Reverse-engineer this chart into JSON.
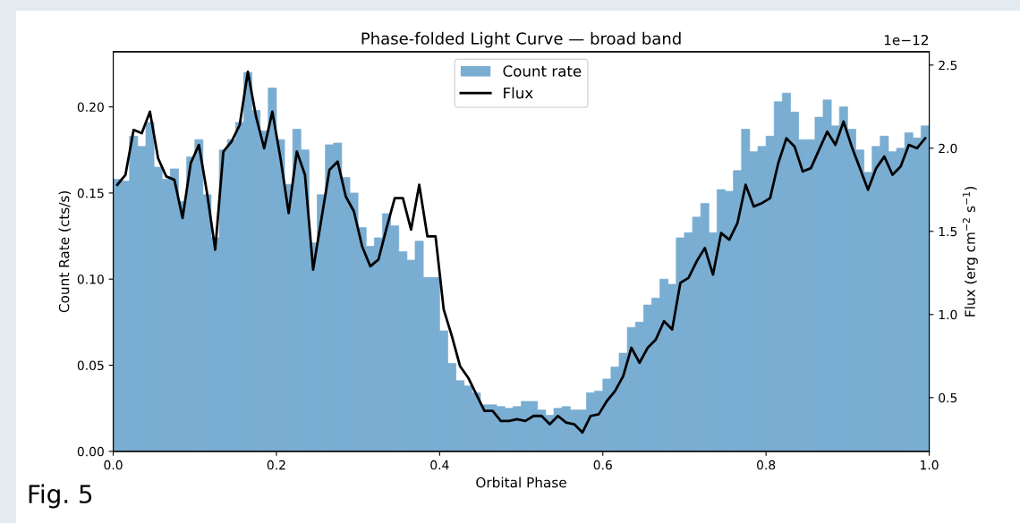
{
  "chart_data": {
    "type": "histogram",
    "title": "Phase-folded Light Curve — broad band",
    "xlabel": "Orbital Phase",
    "ylabel": "Count Rate (cts/s)",
    "y2label": "Flux (erg cm$^{−2}$ s$^{−1}$)",
    "bins": [
      0.0,
      0.01,
      0.02,
      0.03,
      0.04,
      0.05,
      0.06,
      0.07,
      0.08,
      0.09,
      0.1,
      0.11,
      0.12,
      0.13,
      0.14,
      0.15,
      0.16,
      0.17,
      0.18,
      0.19,
      0.2,
      0.21,
      0.22,
      0.23,
      0.24,
      0.25,
      0.26,
      0.27,
      0.28,
      0.29,
      0.3,
      0.31,
      0.32,
      0.33,
      0.34,
      0.35,
      0.36,
      0.37,
      0.38,
      0.39,
      0.4,
      0.41,
      0.42,
      0.43,
      0.44,
      0.45,
      0.46,
      0.47,
      0.48,
      0.49,
      0.5,
      0.51,
      0.52,
      0.53,
      0.54,
      0.55,
      0.56,
      0.57,
      0.58,
      0.59,
      0.6,
      0.61,
      0.62,
      0.63,
      0.64,
      0.65,
      0.66,
      0.67,
      0.68,
      0.69,
      0.7,
      0.71,
      0.72,
      0.73,
      0.74,
      0.75,
      0.76,
      0.77,
      0.78,
      0.79,
      0.8,
      0.81,
      0.82,
      0.83,
      0.84,
      0.85,
      0.86,
      0.87,
      0.88,
      0.89,
      0.9,
      0.91,
      0.92,
      0.93,
      0.94,
      0.95,
      0.96,
      0.97,
      0.98,
      0.99,
      1.0
    ],
    "series": [
      {
        "name": "Count rate",
        "color": "#79add2",
        "values": [
          0.158,
          0.157,
          0.183,
          0.177,
          0.191,
          0.165,
          0.158,
          0.164,
          0.145,
          0.171,
          0.181,
          0.149,
          0.124,
          0.175,
          0.181,
          0.191,
          0.22,
          0.198,
          0.186,
          0.211,
          0.181,
          0.155,
          0.187,
          0.175,
          0.121,
          0.149,
          0.178,
          0.179,
          0.159,
          0.15,
          0.13,
          0.119,
          0.124,
          0.138,
          0.131,
          0.116,
          0.111,
          0.122,
          0.101,
          0.101,
          0.07,
          0.051,
          0.041,
          0.038,
          0.034,
          0.027,
          0.027,
          0.026,
          0.025,
          0.026,
          0.029,
          0.029,
          0.024,
          0.021,
          0.025,
          0.026,
          0.024,
          0.024,
          0.034,
          0.035,
          0.042,
          0.049,
          0.057,
          0.072,
          0.075,
          0.085,
          0.089,
          0.1,
          0.097,
          0.124,
          0.127,
          0.136,
          0.144,
          0.127,
          0.152,
          0.151,
          0.163,
          0.187,
          0.174,
          0.177,
          0.183,
          0.203,
          0.208,
          0.197,
          0.181,
          0.181,
          0.194,
          0.204,
          0.189,
          0.2,
          0.187,
          0.175,
          0.162,
          0.177,
          0.183,
          0.174,
          0.176,
          0.185,
          0.182,
          0.189
        ]
      },
      {
        "name": "Flux",
        "type": "line",
        "axis": "y2",
        "color": "#000000",
        "x": [
          0.005,
          0.015,
          0.025,
          0.035,
          0.045,
          0.055,
          0.065,
          0.075,
          0.085,
          0.095,
          0.105,
          0.115,
          0.125,
          0.135,
          0.145,
          0.155,
          0.165,
          0.175,
          0.185,
          0.195,
          0.205,
          0.215,
          0.225,
          0.235,
          0.245,
          0.255,
          0.265,
          0.275,
          0.285,
          0.295,
          0.305,
          0.315,
          0.325,
          0.335,
          0.345,
          0.355,
          0.365,
          0.375,
          0.385,
          0.395,
          0.405,
          0.415,
          0.425,
          0.435,
          0.445,
          0.455,
          0.465,
          0.475,
          0.485,
          0.495,
          0.505,
          0.515,
          0.525,
          0.535,
          0.545,
          0.555,
          0.565,
          0.575,
          0.585,
          0.595,
          0.605,
          0.615,
          0.625,
          0.635,
          0.645,
          0.655,
          0.665,
          0.675,
          0.685,
          0.695,
          0.705,
          0.715,
          0.725,
          0.735,
          0.745,
          0.755,
          0.765,
          0.775,
          0.785,
          0.795,
          0.805,
          0.815,
          0.825,
          0.835,
          0.845,
          0.855,
          0.865,
          0.875,
          0.885,
          0.895,
          0.905,
          0.915,
          0.925,
          0.935,
          0.945,
          0.955,
          0.965,
          0.975,
          0.985,
          0.995
        ],
        "values": [
          1.78,
          1.84,
          2.11,
          2.09,
          2.22,
          1.94,
          1.83,
          1.81,
          1.58,
          1.91,
          2.02,
          1.73,
          1.39,
          1.98,
          2.04,
          2.14,
          2.46,
          2.19,
          2.0,
          2.22,
          1.94,
          1.61,
          1.98,
          1.84,
          1.27,
          1.57,
          1.87,
          1.92,
          1.71,
          1.62,
          1.41,
          1.29,
          1.33,
          1.52,
          1.7,
          1.7,
          1.51,
          1.78,
          1.47,
          1.47,
          1.03,
          0.87,
          0.69,
          0.62,
          0.52,
          0.42,
          0.42,
          0.36,
          0.36,
          0.37,
          0.36,
          0.39,
          0.39,
          0.34,
          0.39,
          0.35,
          0.34,
          0.29,
          0.39,
          0.4,
          0.48,
          0.54,
          0.63,
          0.8,
          0.71,
          0.8,
          0.85,
          0.96,
          0.91,
          1.19,
          1.22,
          1.32,
          1.4,
          1.24,
          1.49,
          1.45,
          1.55,
          1.78,
          1.65,
          1.67,
          1.7,
          1.91,
          2.06,
          2.01,
          1.86,
          1.88,
          1.99,
          2.1,
          2.02,
          2.16,
          2.01,
          1.88,
          1.75,
          1.88,
          1.95,
          1.84,
          1.89,
          2.02,
          2.0,
          2.06
        ]
      }
    ],
    "xlim": [
      0.0,
      1.0
    ],
    "xticks": [
      {
        "value": 0.0,
        "label": "0.0"
      },
      0.2,
      0.4,
      0.6,
      0.8,
      {
        "value": 1.0,
        "label": "1.0"
      }
    ],
    "ylim": [
      0.0,
      0.232
    ],
    "yticks": [
      {
        "value": 0.0,
        "label": "0.00"
      },
      {
        "value": 0.05,
        "label": "0.05"
      },
      {
        "value": 0.1,
        "label": "0.10"
      },
      {
        "value": 0.15,
        "label": "0.15"
      },
      {
        "value": 0.2,
        "label": "0.20"
      }
    ],
    "y2lim": [
      0.177,
      2.58
    ],
    "y2ticks": [
      0.5,
      {
        "value": 1.0,
        "label": "1.0"
      },
      1.5,
      {
        "value": 2.0,
        "label": "2.0"
      },
      2.5
    ],
    "legend": "top",
    "grid": false,
    "annotations": [
      "1e−12",
      "Fig. 5"
    ]
  }
}
